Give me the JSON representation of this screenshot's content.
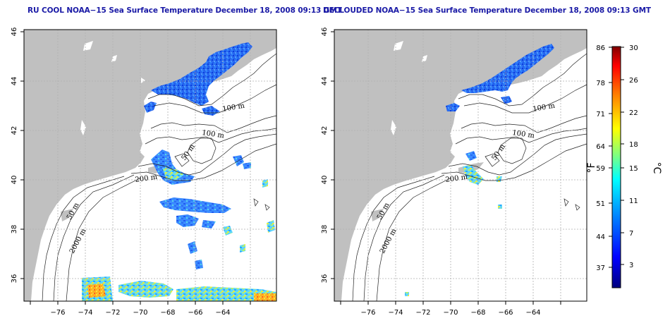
{
  "maps": [
    {
      "title": "RU COOL NOAA−15 Sea Surface Temperature December 18, 2008 09:13 GMT",
      "x_ticks": [
        "−76",
        "−74",
        "−72",
        "−70",
        "−68",
        "−66",
        "−64"
      ],
      "y_ticks": [
        "46",
        "44",
        "42",
        "40",
        "38",
        "36"
      ],
      "contour_labels": [
        "100 m",
        "100 m",
        "50 m",
        "200 m",
        "50 m",
        "2000 m"
      ]
    },
    {
      "title": "DECLOUDED NOAA−15 Sea Surface Temperature December 18, 2008 09:13 GMT",
      "x_ticks": [
        "−76",
        "−74",
        "−72",
        "−70",
        "−68",
        "−66",
        "−64"
      ],
      "y_ticks": [
        "46",
        "44",
        "42",
        "40",
        "38",
        "36"
      ],
      "contour_labels": [
        "100 m",
        "100 m",
        "50 m",
        "200 m",
        "50 m",
        "2000 m"
      ]
    }
  ],
  "colorbar": {
    "fahrenheit_ticks": [
      "86",
      "78",
      "71",
      "64",
      "59",
      "51",
      "44",
      "37"
    ],
    "celsius_ticks": [
      "30",
      "26",
      "22",
      "18",
      "15",
      "11",
      "7",
      "3"
    ],
    "fahrenheit_unit": "°F",
    "celsius_unit": "°C",
    "colors": [
      "#00007f",
      "#0000ff",
      "#007fff",
      "#00ffff",
      "#7fff7f",
      "#ffff00",
      "#ff7f00",
      "#ff0000",
      "#7f0000"
    ]
  },
  "land_color": "#c0c0c0"
}
